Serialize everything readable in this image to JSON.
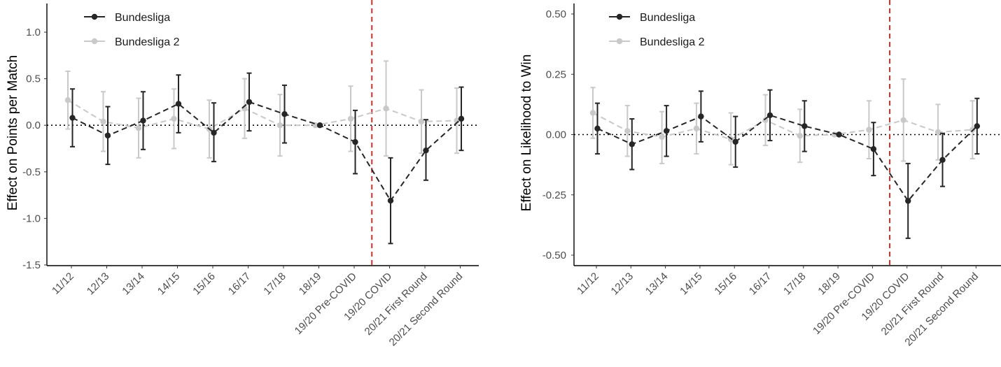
{
  "chart_data": [
    {
      "type": "line",
      "ylabel": "Effect on Points per Match",
      "xlabel": "",
      "ylim": [
        -1.5,
        1.0
      ],
      "yticks": [
        -1.5,
        -1.0,
        -0.5,
        0.0,
        0.5,
        1.0
      ],
      "ytick_labels": [
        "-1.5",
        "-1.0",
        "-0.5",
        "0.0",
        "0.5",
        "1.0"
      ],
      "categories": [
        "11/12",
        "12/13",
        "13/14",
        "14/15",
        "15/16",
        "16/17",
        "17/18",
        "18/19",
        "19/20  Pre-COVID",
        "19/20 COVID",
        "20/21 First Round",
        "20/21 Second Round"
      ],
      "reference_line_y": 0,
      "vertical_marker_between": [
        "19/20  Pre-COVID",
        "19/20 COVID"
      ],
      "legend_position": "top-left",
      "grid": false,
      "series": [
        {
          "name": "Bundesliga",
          "color": "#262626",
          "values": [
            0.08,
            -0.11,
            0.05,
            0.23,
            -0.08,
            0.25,
            0.12,
            0.0,
            -0.18,
            -0.81,
            -0.27,
            0.07
          ],
          "lower": [
            -0.23,
            -0.42,
            -0.26,
            -0.08,
            -0.39,
            -0.06,
            -0.19,
            0.0,
            -0.52,
            -1.27,
            -0.59,
            -0.27
          ],
          "upper": [
            0.39,
            0.2,
            0.36,
            0.54,
            0.24,
            0.56,
            0.43,
            0.0,
            0.16,
            -0.35,
            0.06,
            0.41
          ]
        },
        {
          "name": "Bundesliga 2",
          "color": "#c9c9c9",
          "values": [
            0.27,
            0.04,
            -0.03,
            0.07,
            -0.04,
            0.18,
            0.0,
            0.0,
            0.07,
            0.18,
            0.04,
            0.05
          ],
          "lower": [
            -0.04,
            -0.28,
            -0.35,
            -0.25,
            -0.35,
            -0.14,
            -0.33,
            0.0,
            -0.28,
            -0.33,
            -0.3,
            -0.3
          ],
          "upper": [
            0.58,
            0.36,
            0.29,
            0.39,
            0.27,
            0.5,
            0.33,
            0.0,
            0.42,
            0.69,
            0.38,
            0.4
          ]
        }
      ]
    },
    {
      "type": "line",
      "ylabel": "Effect on Likelihood to Win",
      "xlabel": "",
      "ylim": [
        -0.55,
        0.55
      ],
      "yticks": [
        -0.5,
        -0.25,
        0.0,
        0.25,
        0.5
      ],
      "ytick_labels": [
        "-0.50",
        "-0.25",
        "0.00",
        "0.25",
        "0.50"
      ],
      "categories": [
        "11/12",
        "12/13",
        "13/14",
        "14/15",
        "15/16",
        "16/17",
        "17/18",
        "18/19",
        "19/20  Pre-COVID",
        "19/20 COVID",
        "20/21 First Round",
        "20/21 Second Round"
      ],
      "reference_line_y": 0,
      "vertical_marker_between": [
        "19/20  Pre-COVID",
        "19/20 COVID"
      ],
      "legend_position": "top-left",
      "grid": false,
      "series": [
        {
          "name": "Bundesliga",
          "color": "#262626",
          "values": [
            0.025,
            -0.04,
            0.015,
            0.075,
            -0.03,
            0.08,
            0.035,
            0.0,
            -0.06,
            -0.275,
            -0.105,
            0.035
          ],
          "lower": [
            -0.08,
            -0.145,
            -0.09,
            -0.03,
            -0.135,
            -0.025,
            -0.07,
            0.0,
            -0.17,
            -0.43,
            -0.215,
            -0.08
          ],
          "upper": [
            0.13,
            0.065,
            0.12,
            0.18,
            0.075,
            0.185,
            0.14,
            0.0,
            0.05,
            -0.12,
            0.005,
            0.15
          ]
        },
        {
          "name": "Bundesliga 2",
          "color": "#c9c9c9",
          "values": [
            0.09,
            0.015,
            -0.01,
            0.025,
            -0.02,
            0.06,
            -0.005,
            0.0,
            0.02,
            0.06,
            0.01,
            0.02
          ],
          "lower": [
            -0.015,
            -0.09,
            -0.12,
            -0.08,
            -0.125,
            -0.045,
            -0.115,
            0.0,
            -0.1,
            -0.11,
            -0.105,
            -0.1
          ],
          "upper": [
            0.195,
            0.12,
            0.095,
            0.13,
            0.09,
            0.165,
            0.105,
            0.0,
            0.14,
            0.23,
            0.125,
            0.14
          ]
        }
      ]
    }
  ]
}
